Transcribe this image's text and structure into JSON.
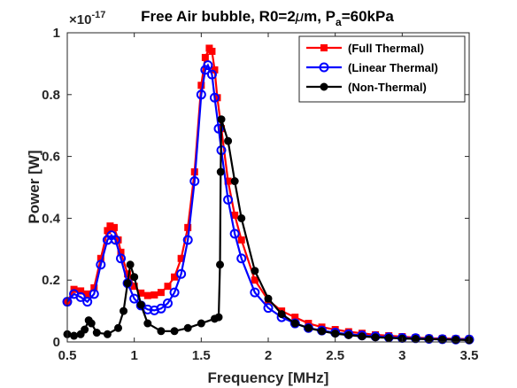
{
  "chart_data": {
    "type": "line",
    "title": {
      "prefix": "Free Air bubble, R0=2",
      "mu": "μ",
      "middle": "m, P",
      "sub": "a",
      "suffix": "=60kPa"
    },
    "xlabel": "Frequency [MHz]",
    "ylabel": "Power [W]",
    "exponent_base": "×10",
    "exponent_power": "-17",
    "xlim": [
      0.5,
      3.5
    ],
    "ylim": [
      0,
      1
    ],
    "xticks": [
      0.5,
      1,
      1.5,
      2,
      2.5,
      3,
      3.5
    ],
    "xtick_labels": [
      "0.5",
      "1",
      "1.5",
      "2",
      "2.5",
      "3",
      "3.5"
    ],
    "yticks": [
      0,
      0.2,
      0.4,
      0.6,
      0.8,
      1
    ],
    "ytick_labels": [
      "0",
      "0.2",
      "0.4",
      "0.6",
      "0.8",
      "1"
    ],
    "grid": false,
    "legend_position": "top-right",
    "series": [
      {
        "name": "(Full Thermal)",
        "color": "#ff0000",
        "marker": "square",
        "points": [
          [
            0.5,
            0.13
          ],
          [
            0.55,
            0.17
          ],
          [
            0.6,
            0.165
          ],
          [
            0.65,
            0.155
          ],
          [
            0.7,
            0.175
          ],
          [
            0.75,
            0.27
          ],
          [
            0.8,
            0.36
          ],
          [
            0.82,
            0.375
          ],
          [
            0.85,
            0.37
          ],
          [
            0.88,
            0.33
          ],
          [
            0.9,
            0.29
          ],
          [
            0.95,
            0.22
          ],
          [
            1.0,
            0.18
          ],
          [
            1.05,
            0.158
          ],
          [
            1.1,
            0.15
          ],
          [
            1.15,
            0.152
          ],
          [
            1.2,
            0.16
          ],
          [
            1.25,
            0.18
          ],
          [
            1.3,
            0.21
          ],
          [
            1.35,
            0.27
          ],
          [
            1.4,
            0.37
          ],
          [
            1.45,
            0.55
          ],
          [
            1.5,
            0.83
          ],
          [
            1.53,
            0.92
          ],
          [
            1.56,
            0.95
          ],
          [
            1.58,
            0.94
          ],
          [
            1.6,
            0.88
          ],
          [
            1.62,
            0.79
          ],
          [
            1.65,
            0.69
          ],
          [
            1.7,
            0.52
          ],
          [
            1.75,
            0.41
          ],
          [
            1.8,
            0.33
          ],
          [
            1.9,
            0.2
          ],
          [
            2.0,
            0.135
          ],
          [
            2.1,
            0.1
          ],
          [
            2.2,
            0.08
          ],
          [
            2.3,
            0.06
          ],
          [
            2.4,
            0.048
          ],
          [
            2.5,
            0.04
          ],
          [
            2.6,
            0.033
          ],
          [
            2.7,
            0.028
          ],
          [
            2.8,
            0.023
          ],
          [
            2.9,
            0.02
          ],
          [
            3.0,
            0.017
          ],
          [
            3.1,
            0.014
          ],
          [
            3.2,
            0.012
          ],
          [
            3.3,
            0.011
          ],
          [
            3.4,
            0.01
          ],
          [
            3.5,
            0.009
          ]
        ]
      },
      {
        "name": "(Linear Thermal)",
        "color": "#0000ff",
        "marker": "circle",
        "points": [
          [
            0.5,
            0.13
          ],
          [
            0.55,
            0.155
          ],
          [
            0.6,
            0.145
          ],
          [
            0.65,
            0.13
          ],
          [
            0.7,
            0.155
          ],
          [
            0.75,
            0.25
          ],
          [
            0.8,
            0.33
          ],
          [
            0.83,
            0.345
          ],
          [
            0.86,
            0.33
          ],
          [
            0.9,
            0.27
          ],
          [
            0.95,
            0.19
          ],
          [
            1.0,
            0.14
          ],
          [
            1.05,
            0.118
          ],
          [
            1.1,
            0.105
          ],
          [
            1.15,
            0.102
          ],
          [
            1.2,
            0.108
          ],
          [
            1.25,
            0.125
          ],
          [
            1.3,
            0.16
          ],
          [
            1.35,
            0.22
          ],
          [
            1.4,
            0.33
          ],
          [
            1.45,
            0.52
          ],
          [
            1.5,
            0.8
          ],
          [
            1.53,
            0.88
          ],
          [
            1.55,
            0.895
          ],
          [
            1.58,
            0.865
          ],
          [
            1.6,
            0.79
          ],
          [
            1.63,
            0.69
          ],
          [
            1.65,
            0.62
          ],
          [
            1.7,
            0.46
          ],
          [
            1.75,
            0.35
          ],
          [
            1.8,
            0.27
          ],
          [
            1.9,
            0.16
          ],
          [
            2.0,
            0.11
          ],
          [
            2.1,
            0.08
          ],
          [
            2.2,
            0.06
          ],
          [
            2.3,
            0.045
          ],
          [
            2.4,
            0.037
          ],
          [
            2.5,
            0.03
          ],
          [
            2.6,
            0.025
          ],
          [
            2.7,
            0.021
          ],
          [
            2.8,
            0.018
          ],
          [
            2.9,
            0.015
          ],
          [
            3.0,
            0.013
          ],
          [
            3.1,
            0.012
          ],
          [
            3.2,
            0.01
          ],
          [
            3.3,
            0.009
          ],
          [
            3.4,
            0.008
          ],
          [
            3.5,
            0.008
          ]
        ]
      },
      {
        "name": "(Non-Thermal)",
        "color": "#000000",
        "marker": "circle-filled",
        "points": [
          [
            0.5,
            0.025
          ],
          [
            0.55,
            0.02
          ],
          [
            0.6,
            0.025
          ],
          [
            0.63,
            0.04
          ],
          [
            0.66,
            0.07
          ],
          [
            0.68,
            0.06
          ],
          [
            0.72,
            0.03
          ],
          [
            0.8,
            0.025
          ],
          [
            0.88,
            0.045
          ],
          [
            0.92,
            0.1
          ],
          [
            0.95,
            0.19
          ],
          [
            0.97,
            0.25
          ],
          [
            1.0,
            0.21
          ],
          [
            1.05,
            0.12
          ],
          [
            1.1,
            0.06
          ],
          [
            1.2,
            0.035
          ],
          [
            1.3,
            0.035
          ],
          [
            1.4,
            0.045
          ],
          [
            1.5,
            0.06
          ],
          [
            1.6,
            0.075
          ],
          [
            1.63,
            0.08
          ],
          [
            1.64,
            0.25
          ],
          [
            1.645,
            0.55
          ],
          [
            1.65,
            0.72
          ],
          [
            1.7,
            0.65
          ],
          [
            1.75,
            0.52
          ],
          [
            1.8,
            0.4
          ],
          [
            1.9,
            0.23
          ],
          [
            2.0,
            0.14
          ],
          [
            2.1,
            0.09
          ],
          [
            2.2,
            0.06
          ],
          [
            2.3,
            0.045
          ],
          [
            2.4,
            0.035
          ],
          [
            2.5,
            0.027
          ],
          [
            2.6,
            0.022
          ],
          [
            2.7,
            0.018
          ],
          [
            2.8,
            0.015
          ],
          [
            2.9,
            0.013
          ],
          [
            3.0,
            0.011
          ],
          [
            3.1,
            0.01
          ],
          [
            3.2,
            0.009
          ],
          [
            3.3,
            0.008
          ],
          [
            3.4,
            0.007
          ],
          [
            3.5,
            0.006
          ]
        ]
      }
    ]
  }
}
